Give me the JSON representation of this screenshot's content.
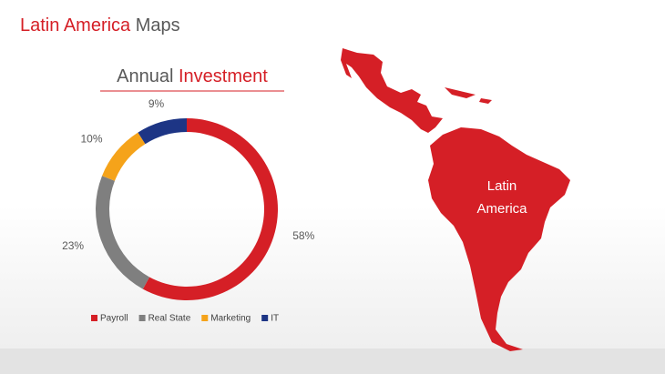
{
  "header": {
    "title": [
      "Latin America",
      "Maps"
    ]
  },
  "chart_data": {
    "type": "donut",
    "title": [
      "Annual",
      "Investment"
    ],
    "categories": [
      "Payroll",
      "Real State",
      "Marketing",
      "IT"
    ],
    "values": [
      58,
      23,
      10,
      9
    ],
    "value_labels": [
      "58%",
      "23%",
      "10%",
      "9%"
    ],
    "colors": [
      "#d51f26",
      "#7f7f7f",
      "#f5a31a",
      "#1d3585"
    ],
    "legend": "bottom"
  },
  "map": {
    "label": [
      "Latin",
      "America"
    ]
  }
}
